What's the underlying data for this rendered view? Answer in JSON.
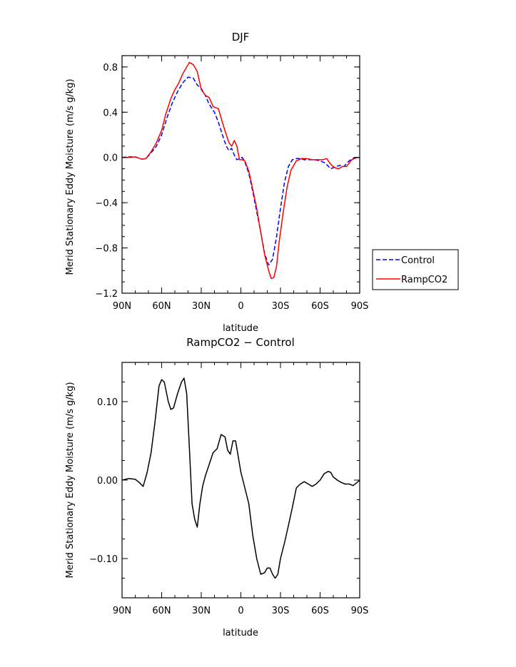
{
  "chart_data": [
    {
      "type": "line",
      "title": "DJF",
      "xlabel": "latitude",
      "ylabel": "Merid Stationary Eddy Moisture (m/s g/kg)",
      "xlim": [
        90,
        -90
      ],
      "ylim": [
        -1.2,
        0.9
      ],
      "xticks": [
        90,
        60,
        30,
        0,
        -30,
        -60,
        -90
      ],
      "xtick_labels": [
        "90N",
        "60N",
        "30N",
        "0",
        "30S",
        "60S",
        "90S"
      ],
      "yticks": [
        0.8,
        0.4,
        0.0,
        -0.4,
        -0.8,
        -1.2
      ],
      "ytick_labels": [
        "0.8",
        "0.4",
        "0.0",
        "−0.4",
        "−0.8",
        "−1.2"
      ],
      "legend_position": "right-outside-bottom",
      "series": [
        {
          "name": "Control",
          "color": "#0000ff",
          "style": "dashed",
          "x": [
            90,
            85,
            80,
            75,
            72,
            68,
            64,
            60,
            56,
            52,
            48,
            44,
            40,
            36,
            33,
            30,
            27,
            24,
            20,
            17,
            14,
            11,
            9,
            7,
            5,
            3,
            1,
            -1,
            -3,
            -6,
            -9,
            -12,
            -15,
            -18,
            -21,
            -24,
            -27,
            -30,
            -33,
            -36,
            -39,
            -42,
            -45,
            -48,
            -52,
            -56,
            -60,
            -64,
            -68,
            -70,
            -72,
            -75,
            -78,
            -82,
            -86,
            -90
          ],
          "y": [
            0.0,
            0.005,
            0.005,
            -0.015,
            -0.01,
            0.04,
            0.1,
            0.2,
            0.35,
            0.48,
            0.58,
            0.66,
            0.71,
            0.7,
            0.64,
            0.61,
            0.55,
            0.47,
            0.4,
            0.31,
            0.2,
            0.1,
            0.06,
            0.08,
            0.02,
            -0.02,
            -0.01,
            0.0,
            -0.04,
            -0.14,
            -0.3,
            -0.48,
            -0.66,
            -0.85,
            -0.95,
            -0.9,
            -0.7,
            -0.45,
            -0.22,
            -0.08,
            -0.02,
            -0.01,
            -0.01,
            -0.02,
            -0.02,
            -0.02,
            -0.03,
            -0.05,
            -0.1,
            -0.09,
            -0.08,
            -0.07,
            -0.08,
            -0.03,
            0.0,
            0.0
          ]
        },
        {
          "name": "RampCO2",
          "color": "#ff0000",
          "style": "solid",
          "x": [
            90,
            85,
            80,
            75,
            72,
            68,
            64,
            60,
            57,
            53,
            50,
            47,
            44,
            41,
            39,
            36,
            33,
            30,
            27,
            24,
            21,
            17,
            14,
            11,
            9,
            7,
            5,
            3,
            1,
            -1,
            -3,
            -6,
            -9,
            -12,
            -15,
            -18,
            -21,
            -23,
            -25,
            -27,
            -29,
            -32,
            -35,
            -38,
            -42,
            -46,
            -50,
            -54,
            -58,
            -62,
            -65,
            -68,
            -71,
            -74,
            -77,
            -80,
            -84,
            -88,
            -90
          ],
          "y": [
            0.0,
            0.0,
            0.005,
            -0.015,
            -0.01,
            0.05,
            0.13,
            0.24,
            0.38,
            0.52,
            0.6,
            0.66,
            0.74,
            0.8,
            0.84,
            0.82,
            0.76,
            0.6,
            0.55,
            0.53,
            0.45,
            0.43,
            0.31,
            0.2,
            0.13,
            0.1,
            0.15,
            0.1,
            -0.02,
            -0.02,
            -0.03,
            -0.12,
            -0.28,
            -0.45,
            -0.66,
            -0.86,
            -1.0,
            -1.07,
            -1.06,
            -0.96,
            -0.75,
            -0.49,
            -0.26,
            -0.11,
            -0.03,
            -0.01,
            -0.01,
            -0.02,
            -0.02,
            -0.02,
            -0.01,
            -0.06,
            -0.09,
            -0.1,
            -0.08,
            -0.08,
            -0.02,
            0.0,
            0.0
          ]
        }
      ]
    },
    {
      "type": "line",
      "title": "RampCO2 − Control",
      "xlabel": "latitude",
      "ylabel": "Merid Stationary Eddy Moisture (m/s g/kg)",
      "xlim": [
        90,
        -90
      ],
      "ylim": [
        -0.15,
        0.15
      ],
      "xticks": [
        90,
        60,
        30,
        0,
        -30,
        -60,
        -90
      ],
      "xtick_labels": [
        "90N",
        "60N",
        "30N",
        "0",
        "30S",
        "60S",
        "90S"
      ],
      "yticks": [
        0.1,
        0.0,
        -0.1
      ],
      "ytick_labels": [
        "0.10",
        "0.00",
        "−0.10"
      ],
      "series": [
        {
          "color": "#000000",
          "style": "solid",
          "x": [
            90,
            85,
            80,
            77,
            74,
            71,
            68,
            65,
            62,
            60,
            58,
            55,
            53,
            51,
            48,
            45,
            43,
            41,
            39,
            37,
            35,
            33,
            31,
            29,
            27,
            24,
            21,
            18,
            15,
            12,
            10,
            8,
            6,
            4,
            2,
            0,
            -3,
            -6,
            -9,
            -12,
            -15,
            -18,
            -20,
            -22,
            -24,
            -26,
            -28,
            -30,
            -33,
            -36,
            -39,
            -42,
            -45,
            -48,
            -51,
            -54,
            -57,
            -60,
            -63,
            -66,
            -68,
            -70,
            -73,
            -76,
            -79,
            -82,
            -85,
            -88,
            -90
          ],
          "y": [
            0.0,
            0.002,
            0.001,
            -0.003,
            -0.008,
            0.01,
            0.035,
            0.075,
            0.12,
            0.128,
            0.125,
            0.1,
            0.09,
            0.092,
            0.11,
            0.125,
            0.13,
            0.11,
            0.04,
            -0.03,
            -0.05,
            -0.06,
            -0.03,
            -0.008,
            0.005,
            0.02,
            0.035,
            0.04,
            0.058,
            0.055,
            0.038,
            0.033,
            0.05,
            0.05,
            0.03,
            0.01,
            -0.01,
            -0.03,
            -0.07,
            -0.1,
            -0.12,
            -0.118,
            -0.112,
            -0.112,
            -0.12,
            -0.125,
            -0.12,
            -0.1,
            -0.08,
            -0.058,
            -0.035,
            -0.01,
            -0.005,
            -0.002,
            -0.005,
            -0.008,
            -0.005,
            0.0,
            0.008,
            0.011,
            0.01,
            0.004,
            0.0,
            -0.003,
            -0.005,
            -0.005,
            -0.007,
            -0.003,
            0.0
          ]
        }
      ]
    }
  ]
}
